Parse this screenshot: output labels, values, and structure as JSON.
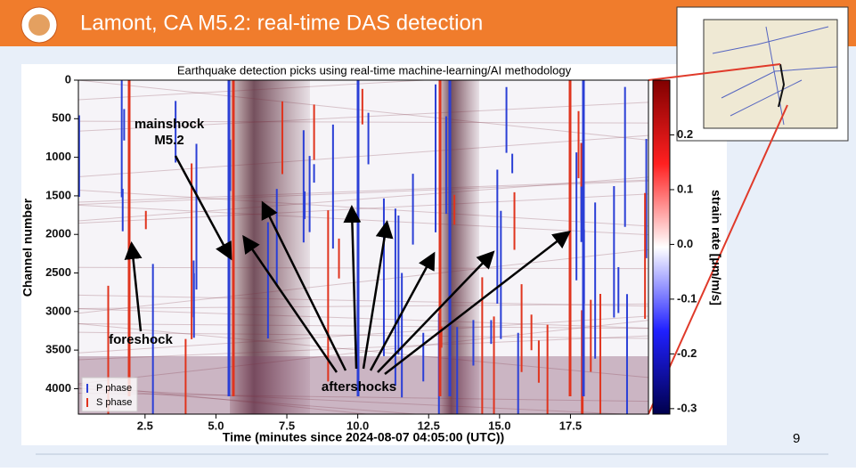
{
  "slide": {
    "title": "Lamont, CA M5.2: real-time DAS detection",
    "page_number": "9"
  },
  "chart_data": {
    "type": "waterfall",
    "title": "Earthquake detection picks using real-time machine-learning/AI methodology",
    "x_label": "Time (minutes since 2024-08-07 04:05:00 (UTC))",
    "y_label": "Channel number",
    "xlim": [
      0.15,
      20.25
    ],
    "xticks": [
      2.5,
      {
        "value": 5,
        "label": "5.0"
      },
      7.5,
      {
        "value": 10,
        "label": "10.0"
      },
      12.5,
      {
        "value": 15,
        "label": "15.0"
      },
      17.5
    ],
    "ylim": [
      4330,
      0
    ],
    "yticks": [
      0,
      500,
      1000,
      1500,
      2000,
      2500,
      3000,
      3500,
      4000
    ],
    "colorbar_label": "strain rate [μm/m/s]",
    "clim": [
      -0.31,
      0.3
    ],
    "cticks": [
      0.2,
      0.1,
      {
        "value": 0,
        "label": "0.0"
      },
      -0.1,
      -0.2,
      -0.3
    ],
    "series": [
      {
        "name": "P phase",
        "color": "#2b3fd6"
      },
      {
        "name": "S phase",
        "color": "#e0341e"
      }
    ],
    "annotations": {
      "mainshock": [
        "mainshock",
        "M5.2"
      ],
      "foreshock": "foreshock",
      "aftershocks": "aftershocks"
    }
  }
}
